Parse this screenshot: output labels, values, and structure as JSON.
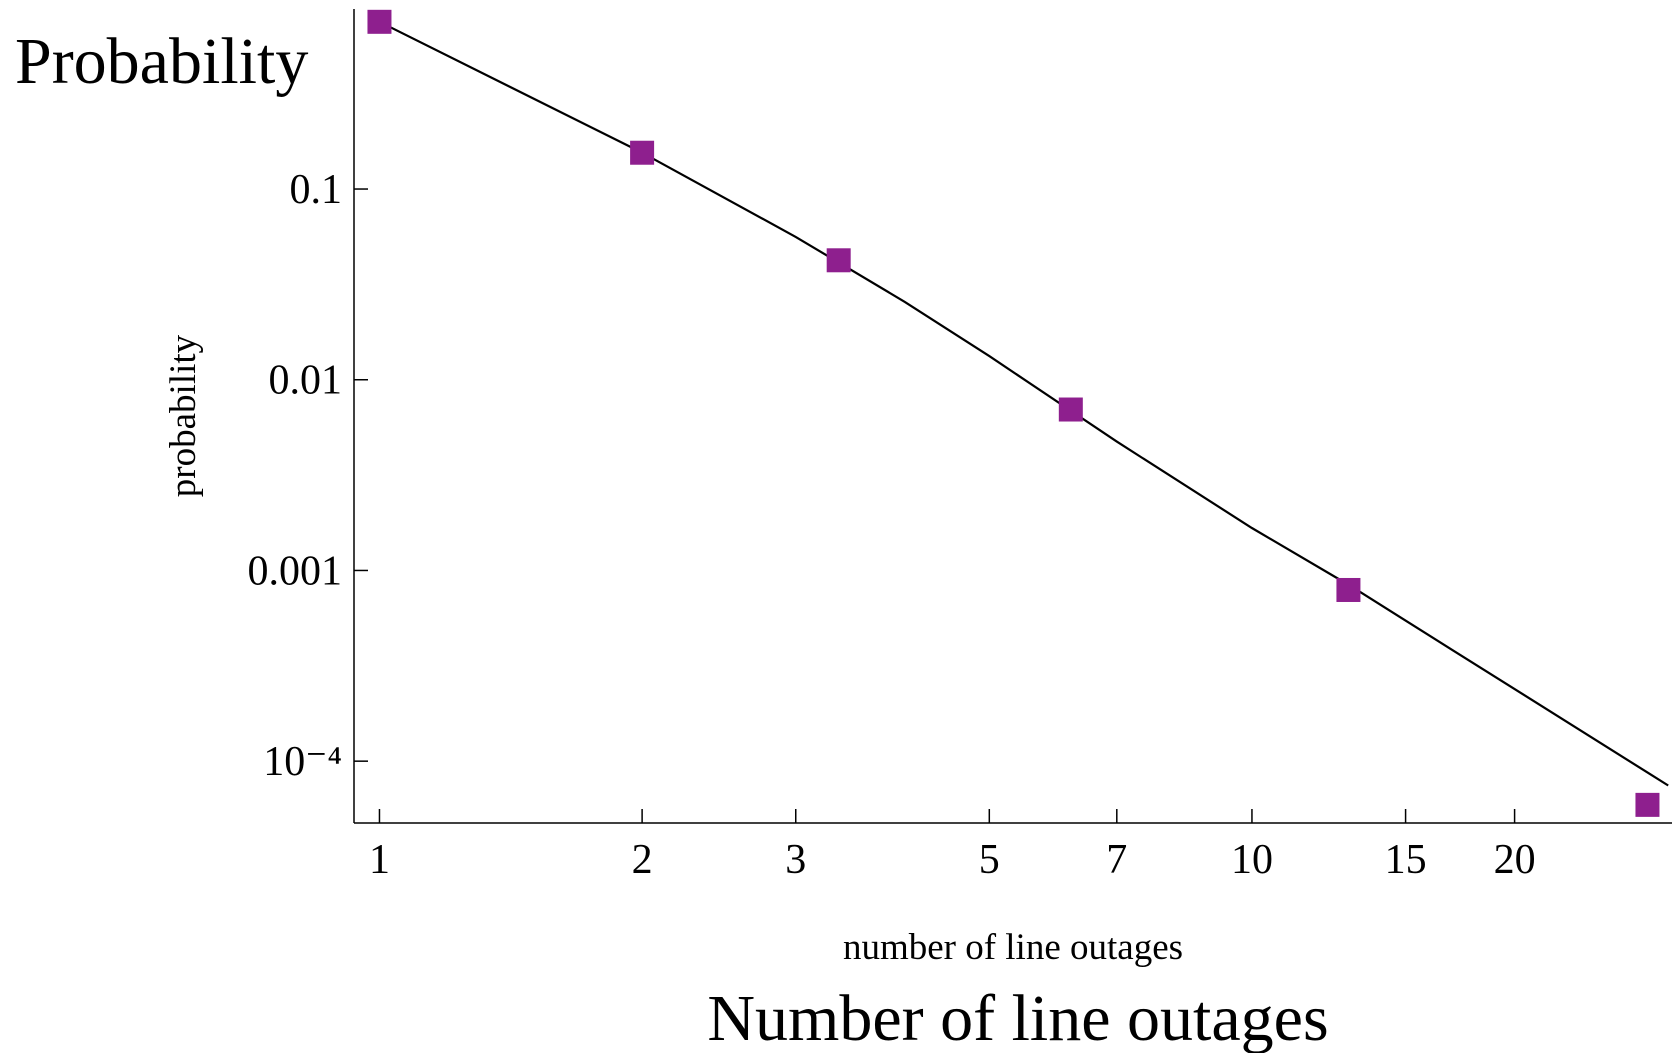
{
  "chart_data": {
    "type": "scatter",
    "y_label_top": "Probability",
    "ylabel": "probability",
    "xlabel": "number of line outages",
    "x_label_bottom": "Number of line outages",
    "xscale": "log",
    "yscale": "log",
    "xlim": [
      0.935,
      30.3
    ],
    "ylim": [
      4.74e-05,
      0.879
    ],
    "xticks": [
      1,
      2,
      3,
      5,
      7,
      10,
      15,
      20
    ],
    "yticks": [
      0.1,
      0.01,
      0.001,
      {
        "value": 0.0001,
        "label": "10⁻⁴"
      }
    ],
    "series": [
      {
        "color": "#8e1f8e",
        "x": [
          1,
          2,
          3.36,
          6.2,
          12.9,
          28.4
        ],
        "values": [
          0.753,
          0.155,
          0.0423,
          0.00698,
          0.00079,
          5.9e-05
        ]
      }
    ],
    "line": {
      "color": "#000000",
      "x": [
        1,
        2,
        3,
        4,
        5,
        7,
        10,
        13,
        17,
        30
      ],
      "values": [
        0.753,
        0.155,
        0.0561,
        0.0256,
        0.0133,
        0.00474,
        0.00167,
        0.000824,
        0.000381,
        7.45e-05
      ]
    }
  }
}
